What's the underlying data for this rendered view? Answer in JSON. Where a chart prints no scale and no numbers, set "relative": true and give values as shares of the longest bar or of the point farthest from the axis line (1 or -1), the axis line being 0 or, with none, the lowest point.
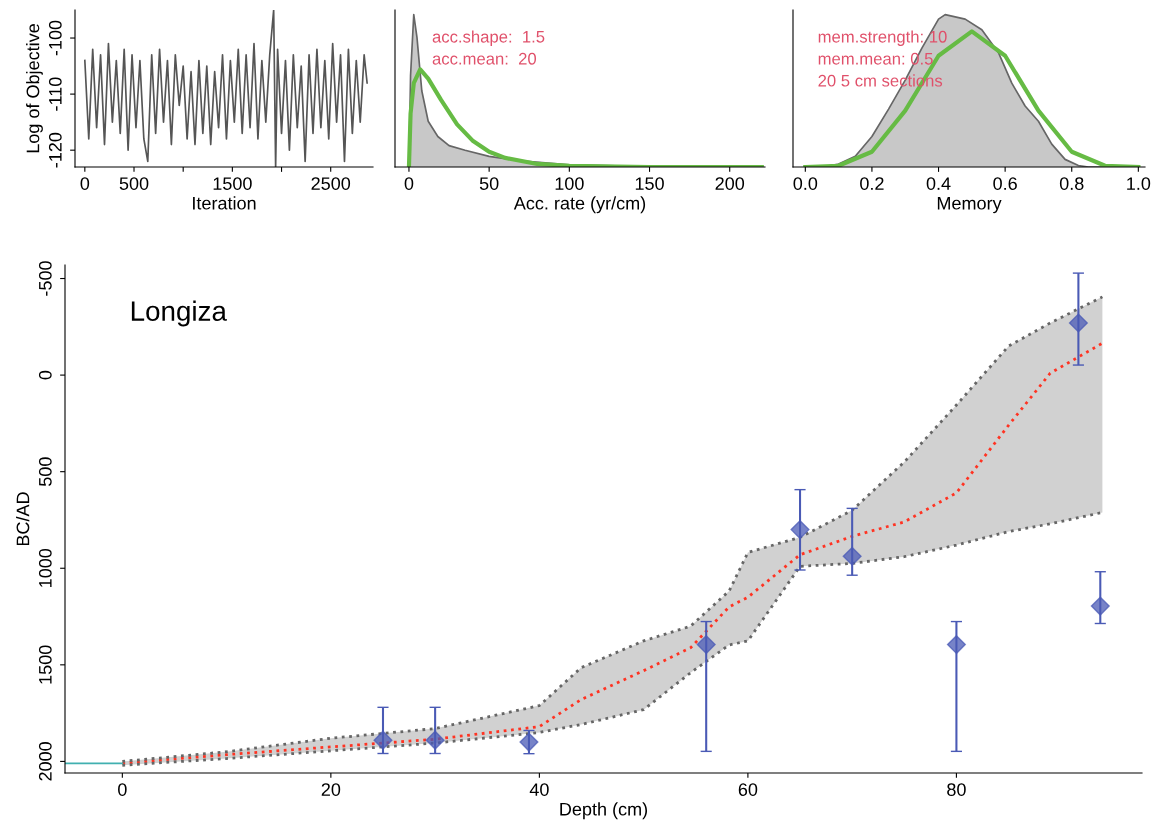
{
  "chart_data": [
    {
      "type": "line",
      "xlabel": "Iteration",
      "ylabel": "Log of Objective",
      "xlim": [
        -100,
        2930
      ],
      "ylim": [
        -123,
        -95
      ],
      "xticks": [
        0,
        500,
        {
          "value": 1000,
          "label": null
        },
        1500,
        {
          "value": 2000,
          "label": null
        },
        2500
      ],
      "yticks": [
        -100,
        -110,
        -120
      ],
      "series": [
        {
          "color": "#555555",
          "x": [
            0,
            40,
            80,
            120,
            160,
            200,
            240,
            280,
            320,
            360,
            400,
            440,
            480,
            520,
            560,
            600,
            640,
            680,
            720,
            760,
            800,
            840,
            880,
            920,
            960,
            1000,
            1040,
            1080,
            1120,
            1160,
            1200,
            1240,
            1280,
            1320,
            1360,
            1400,
            1440,
            1480,
            1520,
            1560,
            1600,
            1640,
            1680,
            1720,
            1760,
            1800,
            1840,
            1880,
            1920,
            1940,
            1960,
            2000,
            2040,
            2080,
            2120,
            2160,
            2200,
            2240,
            2280,
            2320,
            2360,
            2400,
            2440,
            2480,
            2520,
            2560,
            2600,
            2640,
            2680,
            2720,
            2760,
            2800,
            2840,
            2870
          ],
          "values": [
            -104,
            -118,
            -102,
            -116,
            -103,
            -119,
            -101,
            -115,
            -104,
            -117,
            -102,
            -120,
            -103,
            -116,
            -104,
            -118,
            -122,
            -103,
            -117,
            -102,
            -115,
            -104,
            -119,
            -103,
            -112,
            -105,
            -118,
            -106,
            -119,
            -104,
            -117,
            -105,
            -119,
            -106,
            -116,
            -103,
            -118,
            -104,
            -115,
            -102,
            -117,
            -103,
            -116,
            -101,
            -118,
            -104,
            -115,
            -103,
            -95,
            -123,
            -102,
            -117,
            -104,
            -120,
            -103,
            -116,
            -105,
            -122,
            -103,
            -117,
            -102,
            -116,
            -104,
            -118,
            -101,
            -115,
            -103,
            -122,
            -102,
            -117,
            -104,
            -115,
            -103,
            -108
          ]
        }
      ]
    },
    {
      "type": "area",
      "relative": true,
      "xlabel": "Acc. rate (yr/cm)",
      "xlim": [
        -8.7,
        222
      ],
      "xticks": [
        0,
        50,
        100,
        150,
        200
      ],
      "annotations": [
        "acc.shape:  1.5",
        "acc.mean:  20"
      ],
      "series": [
        {
          "type": "area",
          "color": "#c8c8c8",
          "x": [
            0,
            1,
            3,
            5,
            8,
            12,
            18,
            25,
            35,
            50,
            70,
            100,
            150,
            220
          ],
          "values": [
            0,
            0.6,
            1,
            0.85,
            0.5,
            0.3,
            0.2,
            0.14,
            0.11,
            0.07,
            0.04,
            0.015,
            0.003,
            0
          ]
        },
        {
          "type": "line",
          "color": "#66bb44",
          "x": [
            0,
            1,
            3,
            7,
            12,
            20,
            30,
            40,
            50,
            60,
            80,
            100,
            150,
            220
          ],
          "values": [
            0,
            0.35,
            0.55,
            0.64,
            0.58,
            0.44,
            0.28,
            0.17,
            0.1,
            0.06,
            0.02,
            0.007,
            0,
            0
          ]
        }
      ]
    },
    {
      "type": "area",
      "relative": true,
      "xlabel": "Memory",
      "xlim": [
        -0.037,
        1.02
      ],
      "xticks": [
        {
          "value": 0,
          "label": "0.0"
        },
        0.2,
        0.4,
        0.6,
        0.8,
        {
          "value": 1,
          "label": "1.0"
        }
      ],
      "annotations": [
        "mem.strength: 10",
        "mem.mean: 0.5",
        "20 5 cm sections"
      ],
      "series": [
        {
          "type": "area",
          "color": "#c8c8c8",
          "x": [
            0.0,
            0.05,
            0.1,
            0.15,
            0.2,
            0.25,
            0.3,
            0.35,
            0.4,
            0.42,
            0.48,
            0.53,
            0.58,
            0.62,
            0.66,
            0.7,
            0.74,
            0.78,
            0.82,
            0.85,
            1.0
          ],
          "values": [
            0,
            0,
            0.02,
            0.07,
            0.2,
            0.38,
            0.57,
            0.78,
            0.97,
            1.0,
            0.97,
            0.9,
            0.75,
            0.55,
            0.4,
            0.3,
            0.15,
            0.05,
            0.01,
            0,
            0
          ]
        },
        {
          "type": "line",
          "color": "#66bb44",
          "x": [
            0.0,
            0.1,
            0.2,
            0.3,
            0.4,
            0.5,
            0.6,
            0.7,
            0.8,
            0.9,
            1.0
          ],
          "values": [
            0,
            0.008,
            0.1,
            0.37,
            0.73,
            0.89,
            0.73,
            0.37,
            0.1,
            0.008,
            0
          ]
        }
      ]
    },
    {
      "type": "line",
      "xlabel": "Depth (cm)",
      "ylabel": "BC/AD",
      "xlim": [
        -5.5,
        97.8
      ],
      "ylim": [
        2060,
        -570
      ],
      "xticks": [
        0,
        20,
        40,
        60,
        80
      ],
      "yticks": [
        -500,
        0,
        500,
        1000,
        1500,
        2000
      ],
      "annotations": [
        "Longiza"
      ],
      "series": [
        {
          "type": "line",
          "color": "#ff3322",
          "line_style": "dotted",
          "x": [
            0,
            10,
            20,
            30,
            40,
            44,
            50,
            54.5,
            58.2,
            60,
            65,
            70,
            75,
            80,
            85,
            89,
            94
          ],
          "values": [
            2010,
            1965,
            1925,
            1885,
            1820,
            1680,
            1530,
            1412,
            1200,
            1150,
            930,
            835,
            760,
            610,
            260,
            -10,
            -165
          ],
          "lower": [
            2000,
            1950,
            1880,
            1830,
            1711,
            1515,
            1376,
            1300,
            1118,
            918,
            840,
            700,
            450,
            155,
            -150,
            -270,
            -405
          ],
          "upper": [
            2020,
            1985,
            1945,
            1905,
            1850,
            1809,
            1732,
            1541,
            1397,
            1376,
            990,
            975,
            940,
            880,
            810,
            770,
            711
          ]
        },
        {
          "type": "line",
          "color": "#666666",
          "line_style": "dotted",
          "x": [
            0,
            10,
            20,
            30,
            40,
            44,
            50,
            54.5,
            58.2,
            60,
            65,
            70,
            75,
            80,
            85,
            89,
            94
          ],
          "values": [
            2000,
            1950,
            1880,
            1830,
            1711,
            1515,
            1376,
            1300,
            1118,
            918,
            840,
            700,
            450,
            155,
            -150,
            -270,
            -405
          ]
        },
        {
          "type": "line",
          "color": "#666666",
          "line_style": "dotted",
          "x": [
            0,
            10,
            20,
            30,
            40,
            44,
            50,
            54.5,
            58.2,
            60,
            65,
            70,
            75,
            80,
            85,
            89,
            94
          ],
          "values": [
            2020,
            1985,
            1945,
            1905,
            1850,
            1809,
            1732,
            1541,
            1397,
            1376,
            990,
            975,
            940,
            880,
            810,
            770,
            711
          ]
        },
        {
          "type": "scatter",
          "color": "#4a5ab5",
          "marker": "diamond",
          "x": [
            25,
            30,
            39,
            56,
            65,
            70,
            80,
            91.7,
            93.8
          ],
          "values": [
            1890,
            1890,
            1900,
            1395,
            800,
            938,
            1395,
            -270,
            1196
          ],
          "errors": [
            [
              1720,
              1959
            ],
            [
              1720,
              1959
            ],
            [
              1840,
              1960
            ],
            [
              1276,
              1948
            ],
            [
              593,
              1009
            ],
            [
              690,
              1036
            ],
            [
              1276,
              1948
            ],
            [
              -528,
              -52
            ],
            [
              1018,
              1286
            ]
          ]
        },
        {
          "type": "line",
          "color": "#40b0b0",
          "x": [
            -5.5,
            0
          ],
          "values": [
            2010,
            2010
          ]
        }
      ]
    }
  ]
}
